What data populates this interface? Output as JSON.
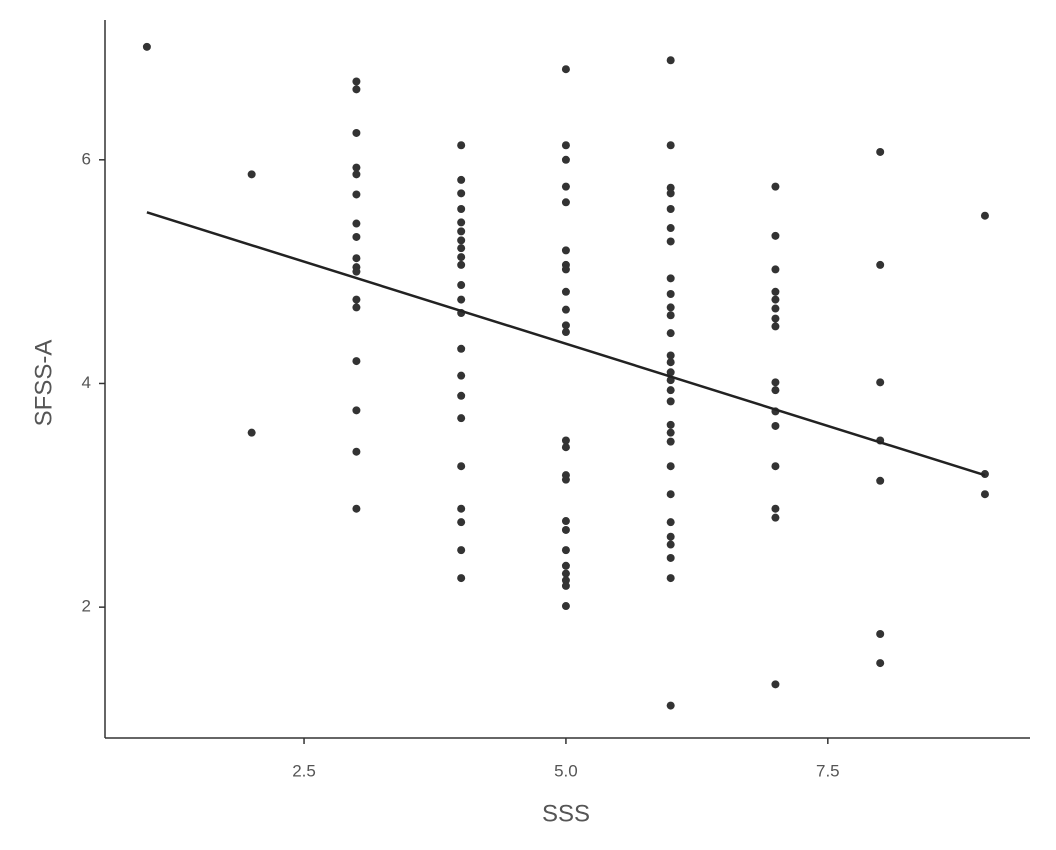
{
  "chart_data": {
    "type": "scatter",
    "x_label": "SSS",
    "y_label": "SFSS-A",
    "xlim": [
      0.6,
      9.43
    ],
    "ylim": [
      0.83,
      7.25
    ],
    "xticks": [
      2.5,
      {
        "value": 5,
        "label": "5.0"
      },
      7.5
    ],
    "yticks": [
      2,
      4,
      6
    ],
    "color": "#333333",
    "x": [
      1,
      2,
      2,
      3,
      3,
      3,
      3,
      3,
      3,
      3,
      3,
      3,
      3,
      3,
      3,
      3,
      3,
      3,
      3,
      3,
      4,
      4,
      4,
      4,
      4,
      4,
      4,
      4,
      4,
      4,
      4,
      4,
      4,
      4,
      4,
      4,
      4,
      4,
      4,
      4,
      4,
      4,
      5,
      5,
      5,
      5,
      5,
      5,
      5,
      5,
      5,
      5,
      5,
      5,
      5,
      5,
      5,
      5,
      5,
      5,
      5,
      5,
      5,
      5,
      5,
      5,
      6,
      6,
      6,
      6,
      6,
      6,
      6,
      6,
      6,
      6,
      6,
      6,
      6,
      6,
      6,
      6,
      6,
      6,
      6,
      6,
      6,
      6,
      6,
      6,
      6,
      6,
      6,
      6,
      6,
      7,
      7,
      7,
      7,
      7,
      7,
      7,
      7,
      7,
      7,
      7,
      7,
      7,
      7,
      7,
      7,
      8,
      8,
      8,
      8,
      8,
      8,
      8,
      9,
      9,
      9
    ],
    "values": [
      7.01,
      5.87,
      3.56,
      6.7,
      6.63,
      6.24,
      5.93,
      5.87,
      5.69,
      5.43,
      5.31,
      5.12,
      5.04,
      5.0,
      4.75,
      4.68,
      4.2,
      3.76,
      3.39,
      2.88,
      6.13,
      5.82,
      5.7,
      5.56,
      5.44,
      5.36,
      5.28,
      5.21,
      5.13,
      5.06,
      4.88,
      4.75,
      4.63,
      4.31,
      4.07,
      3.89,
      3.69,
      3.26,
      2.88,
      2.76,
      2.51,
      2.26,
      6.81,
      6.13,
      6.0,
      5.76,
      5.62,
      5.19,
      5.06,
      5.02,
      4.82,
      4.66,
      4.52,
      4.46,
      3.49,
      3.43,
      3.18,
      3.14,
      2.77,
      2.69,
      2.51,
      2.37,
      2.3,
      2.24,
      2.19,
      2.01,
      6.89,
      6.13,
      5.75,
      5.7,
      5.56,
      5.39,
      5.27,
      4.94,
      4.8,
      4.68,
      4.61,
      4.45,
      4.25,
      4.19,
      4.1,
      4.03,
      3.94,
      3.84,
      3.63,
      3.56,
      3.48,
      3.26,
      3.01,
      2.76,
      2.63,
      2.56,
      2.44,
      2.26,
      1.12,
      5.76,
      5.32,
      5.02,
      4.82,
      4.75,
      4.67,
      4.58,
      4.51,
      4.01,
      3.94,
      3.75,
      3.62,
      3.26,
      2.88,
      2.8,
      1.31,
      6.07,
      5.06,
      4.01,
      3.49,
      3.13,
      1.76,
      1.5,
      5.5,
      3.19,
      3.01
    ],
    "fit_line": {
      "x": [
        1,
        9
      ],
      "values": [
        5.53,
        3.18
      ],
      "color": "#222222"
    }
  }
}
